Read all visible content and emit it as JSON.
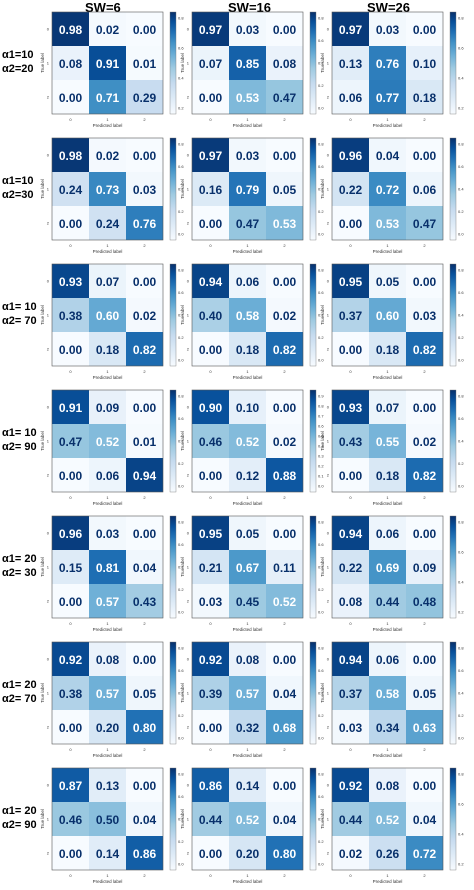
{
  "column_headers": [
    "SW=6",
    "SW=16",
    "SW=26"
  ],
  "row_labels": [
    [
      "α1=10",
      "α2=20"
    ],
    [
      "α1=10",
      "α2=30"
    ],
    [
      "α1= 10",
      "α2= 70"
    ],
    [
      "α1= 10",
      "α2= 90"
    ],
    [
      "α1= 20",
      "α2= 30"
    ],
    [
      "α1= 20",
      "α2= 70"
    ],
    [
      "α1= 20",
      "α2= 90"
    ]
  ],
  "axis": {
    "xlabel": "Predicted label",
    "ylabel": "True label",
    "ticks": [
      "0",
      "1",
      "2"
    ]
  },
  "colors": {
    "low": "#f7fbff",
    "high": "#08306b"
  },
  "chart_data": [
    {
      "type": "heatmap",
      "row": 0,
      "col": 0,
      "values": [
        [
          0.98,
          0.02,
          0.0
        ],
        [
          0.08,
          0.91,
          0.01
        ],
        [
          0.0,
          0.71,
          0.29
        ]
      ],
      "colorbar_ticks": [
        "0.8",
        "0.6",
        "0.4",
        "0.2"
      ]
    },
    {
      "type": "heatmap",
      "row": 0,
      "col": 1,
      "values": [
        [
          0.97,
          0.03,
          0.0
        ],
        [
          0.07,
          0.85,
          0.08
        ],
        [
          0.0,
          0.53,
          0.47
        ]
      ],
      "colorbar_ticks": [
        "0.8",
        "0.6",
        "0.4",
        "0.2",
        "0.0"
      ]
    },
    {
      "type": "heatmap",
      "row": 0,
      "col": 2,
      "values": [
        [
          0.97,
          0.03,
          0.0
        ],
        [
          0.13,
          0.76,
          0.1
        ],
        [
          0.06,
          0.77,
          0.18
        ]
      ],
      "colorbar_ticks": [
        "0.8",
        "0.6",
        "0.4",
        "0.2"
      ]
    },
    {
      "type": "heatmap",
      "row": 1,
      "col": 0,
      "values": [
        [
          0.98,
          0.02,
          0.0
        ],
        [
          0.24,
          0.73,
          0.03
        ],
        [
          0.0,
          0.24,
          0.76
        ]
      ],
      "colorbar_ticks": [
        "0.8",
        "0.6",
        "0.4",
        "0.2",
        "0.0"
      ]
    },
    {
      "type": "heatmap",
      "row": 1,
      "col": 1,
      "values": [
        [
          0.97,
          0.03,
          0.0
        ],
        [
          0.16,
          0.79,
          0.05
        ],
        [
          0.0,
          0.47,
          0.53
        ]
      ],
      "colorbar_ticks": [
        "0.8",
        "0.6",
        "0.4",
        "0.2",
        "0.0"
      ]
    },
    {
      "type": "heatmap",
      "row": 1,
      "col": 2,
      "values": [
        [
          0.96,
          0.04,
          0.0
        ],
        [
          0.22,
          0.72,
          0.06
        ],
        [
          0.0,
          0.53,
          0.47
        ]
      ],
      "colorbar_ticks": [
        "0.8",
        "0.6",
        "0.4",
        "0.2",
        "0.0"
      ]
    },
    {
      "type": "heatmap",
      "row": 2,
      "col": 0,
      "values": [
        [
          0.93,
          0.07,
          0.0
        ],
        [
          0.38,
          0.6,
          0.02
        ],
        [
          0.0,
          0.18,
          0.82
        ]
      ],
      "colorbar_ticks": [
        "0.8",
        "0.6",
        "0.4",
        "0.2",
        "0.0"
      ]
    },
    {
      "type": "heatmap",
      "row": 2,
      "col": 1,
      "values": [
        [
          0.94,
          0.06,
          0.0
        ],
        [
          0.4,
          0.58,
          0.02
        ],
        [
          0.0,
          0.18,
          0.82
        ]
      ],
      "colorbar_ticks": [
        "0.8",
        "0.6",
        "0.4",
        "0.2",
        "0.0"
      ]
    },
    {
      "type": "heatmap",
      "row": 2,
      "col": 2,
      "values": [
        [
          0.95,
          0.05,
          0.0
        ],
        [
          0.37,
          0.6,
          0.03
        ],
        [
          0.0,
          0.18,
          0.82
        ]
      ],
      "colorbar_ticks": [
        "0.8",
        "0.6",
        "0.4",
        "0.2",
        "0.0"
      ]
    },
    {
      "type": "heatmap",
      "row": 3,
      "col": 0,
      "values": [
        [
          0.91,
          0.09,
          0.0
        ],
        [
          0.47,
          0.52,
          0.01
        ],
        [
          0.0,
          0.06,
          0.94
        ]
      ],
      "colorbar_ticks": [
        "0.8",
        "0.6",
        "0.4",
        "0.2",
        "0.0"
      ]
    },
    {
      "type": "heatmap",
      "row": 3,
      "col": 1,
      "values": [
        [
          0.9,
          0.1,
          0.0
        ],
        [
          0.46,
          0.52,
          0.02
        ],
        [
          0.0,
          0.12,
          0.88
        ]
      ],
      "colorbar_ticks": [
        "0.9",
        "0.8",
        "0.7",
        "0.6",
        "0.5",
        "0.4",
        "0.3",
        "0.2",
        "0.1",
        "0.0"
      ]
    },
    {
      "type": "heatmap",
      "row": 3,
      "col": 2,
      "values": [
        [
          0.93,
          0.07,
          0.0
        ],
        [
          0.43,
          0.55,
          0.02
        ],
        [
          0.0,
          0.18,
          0.82
        ]
      ],
      "colorbar_ticks": [
        "0.8",
        "0.6",
        "0.4",
        "0.2",
        "0.0"
      ]
    },
    {
      "type": "heatmap",
      "row": 4,
      "col": 0,
      "values": [
        [
          0.96,
          0.03,
          0.0
        ],
        [
          0.15,
          0.81,
          0.04
        ],
        [
          0.0,
          0.57,
          0.43
        ]
      ],
      "colorbar_ticks": [
        "0.8",
        "0.6",
        "0.4",
        "0.2",
        "0.0"
      ]
    },
    {
      "type": "heatmap",
      "row": 4,
      "col": 1,
      "values": [
        [
          0.95,
          0.05,
          0.0
        ],
        [
          0.21,
          0.67,
          0.11
        ],
        [
          0.03,
          0.45,
          0.52
        ]
      ],
      "colorbar_ticks": [
        "0.8",
        "0.6",
        "0.4",
        "0.2",
        "0.0"
      ]
    },
    {
      "type": "heatmap",
      "row": 4,
      "col": 2,
      "values": [
        [
          0.94,
          0.06,
          0.0
        ],
        [
          0.22,
          0.69,
          0.09
        ],
        [
          0.08,
          0.44,
          0.48
        ]
      ],
      "colorbar_ticks": [
        "0.8",
        "0.6",
        "0.4",
        "0.2"
      ]
    },
    {
      "type": "heatmap",
      "row": 5,
      "col": 0,
      "values": [
        [
          0.92,
          0.08,
          0.0
        ],
        [
          0.38,
          0.57,
          0.05
        ],
        [
          0.0,
          0.2,
          0.8
        ]
      ],
      "colorbar_ticks": [
        "0.8",
        "0.6",
        "0.4",
        "0.2",
        "0.0"
      ]
    },
    {
      "type": "heatmap",
      "row": 5,
      "col": 1,
      "values": [
        [
          0.92,
          0.08,
          0.0
        ],
        [
          0.39,
          0.57,
          0.04
        ],
        [
          0.0,
          0.32,
          0.68
        ]
      ],
      "colorbar_ticks": [
        "0.8",
        "0.6",
        "0.4",
        "0.2",
        "0.0"
      ]
    },
    {
      "type": "heatmap",
      "row": 5,
      "col": 2,
      "values": [
        [
          0.94,
          0.06,
          0.0
        ],
        [
          0.37,
          0.58,
          0.05
        ],
        [
          0.03,
          0.34,
          0.63
        ]
      ],
      "colorbar_ticks": [
        "0.8",
        "0.6",
        "0.4",
        "0.2",
        "0.0"
      ]
    },
    {
      "type": "heatmap",
      "row": 6,
      "col": 0,
      "values": [
        [
          0.87,
          0.13,
          0.0
        ],
        [
          0.46,
          0.5,
          0.04
        ],
        [
          0.0,
          0.14,
          0.86
        ]
      ],
      "colorbar_ticks": [
        "0.8",
        "0.6",
        "0.4",
        "0.2",
        "0.0"
      ]
    },
    {
      "type": "heatmap",
      "row": 6,
      "col": 1,
      "values": [
        [
          0.86,
          0.14,
          0.0
        ],
        [
          0.44,
          0.52,
          0.04
        ],
        [
          0.0,
          0.2,
          0.8
        ]
      ],
      "colorbar_ticks": [
        "0.8",
        "0.6",
        "0.4",
        "0.2",
        "0.0"
      ]
    },
    {
      "type": "heatmap",
      "row": 6,
      "col": 2,
      "values": [
        [
          0.92,
          0.08,
          0.0
        ],
        [
          0.44,
          0.52,
          0.04
        ],
        [
          0.02,
          0.26,
          0.72
        ]
      ],
      "colorbar_ticks": [
        "0.8",
        "0.6",
        "0.4",
        "0.2"
      ]
    }
  ]
}
